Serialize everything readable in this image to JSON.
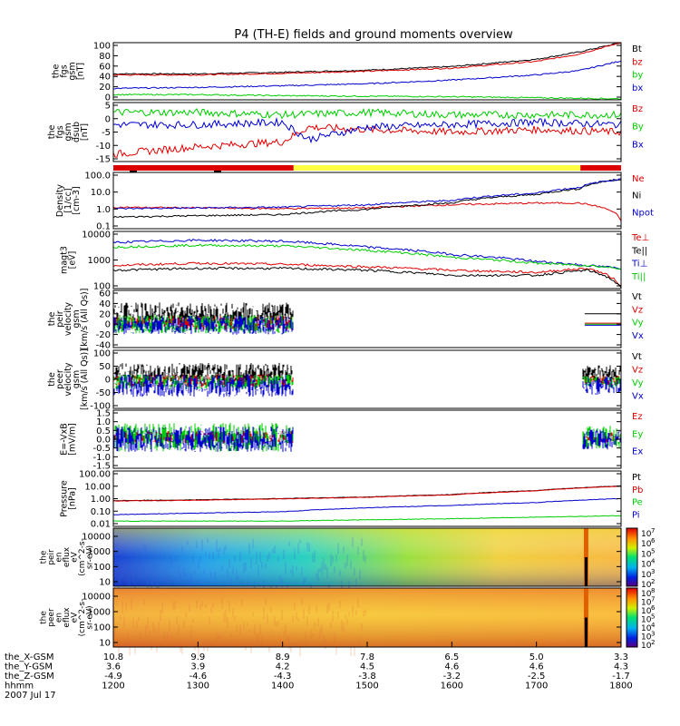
{
  "title": "P4 (TH-E) fields and ground moments overview",
  "colors": {
    "black": "#000000",
    "red": "#dd0000",
    "green": "#00cc00",
    "blue": "#0000cc",
    "yellow": "#ffff44"
  },
  "panels": [
    {
      "ylabel": [
        "the",
        "fgs",
        "gsm",
        "[nT]"
      ],
      "ticks": [
        "100",
        "80",
        "60",
        "40",
        "20",
        "0"
      ],
      "legend": [
        {
          "label": "Bt",
          "color": "#000000"
        },
        {
          "label": "bz",
          "color": "#dd0000"
        },
        {
          "label": "by",
          "color": "#00cc00"
        },
        {
          "label": "bx",
          "color": "#0000cc"
        }
      ]
    },
    {
      "ylabel": [
        "the",
        "fgs",
        "gsm",
        "dsub",
        "[nT]"
      ],
      "ticks": [
        "5",
        "0",
        "-5",
        "-10",
        "-15"
      ],
      "legend": [
        {
          "label": "Bz",
          "color": "#dd0000"
        },
        {
          "label": "By",
          "color": "#00cc00"
        },
        {
          "label": "Bx",
          "color": "#0000cc"
        }
      ]
    },
    {
      "ylabel": [
        "Density",
        "[1/cc]",
        "[cm-3]"
      ],
      "ticks": [
        "100.0",
        "10.0",
        "1.0",
        "0.1"
      ],
      "legend": [
        {
          "label": "Ne",
          "color": "#dd0000"
        },
        {
          "label": "Ni",
          "color": "#000000"
        },
        {
          "label": "Npot",
          "color": "#0000cc"
        }
      ]
    },
    {
      "ylabel": [
        "magt3",
        "[eV]"
      ],
      "ticks": [
        "10000",
        "1000",
        "100"
      ],
      "legend": [
        {
          "label": "Te⊥",
          "color": "#dd0000"
        },
        {
          "label": "Te||",
          "color": "#000000"
        },
        {
          "label": "Ti⊥",
          "color": "#0000cc"
        },
        {
          "label": "Ti||",
          "color": "#00cc00"
        }
      ]
    },
    {
      "ylabel": [
        "the",
        "peir",
        "velocity",
        "gsm",
        "[km/s (All Qs)]"
      ],
      "ticks": [
        "60",
        "40",
        "20",
        "0",
        "-20",
        "-40"
      ],
      "legend": [
        {
          "label": "Vt",
          "color": "#000000"
        },
        {
          "label": "Vz",
          "color": "#dd0000"
        },
        {
          "label": "Vy",
          "color": "#00cc00"
        },
        {
          "label": "Vx",
          "color": "#0000cc"
        }
      ]
    },
    {
      "ylabel": [
        "the",
        "peer",
        "velocity",
        "gsm",
        "[km/s (All Qs)]"
      ],
      "ticks": [
        "100",
        "50",
        "0",
        "-50",
        "-100"
      ],
      "legend": [
        {
          "label": "Vt",
          "color": "#000000"
        },
        {
          "label": "Vz",
          "color": "#dd0000"
        },
        {
          "label": "Vy",
          "color": "#00cc00"
        },
        {
          "label": "Vx",
          "color": "#0000cc"
        }
      ]
    },
    {
      "ylabel": [
        "E=-VxB",
        "[mV/m]"
      ],
      "ticks": [
        "1.5",
        "1.0",
        "0.5",
        "0.0",
        "-0.5",
        "-1.0",
        "-1.5"
      ],
      "legend": [
        {
          "label": "Ez",
          "color": "#dd0000"
        },
        {
          "label": "Ey",
          "color": "#00cc00"
        },
        {
          "label": "Ex",
          "color": "#0000cc"
        }
      ]
    },
    {
      "ylabel": [
        "Pressure",
        "[nPa]"
      ],
      "ticks": [
        "100.00",
        "10.00",
        "1.00",
        "0.10",
        "0.01"
      ],
      "legend": [
        {
          "label": "Pt",
          "color": "#000000"
        },
        {
          "label": "Pb",
          "color": "#dd0000"
        },
        {
          "label": "Pe",
          "color": "#00cc00"
        },
        {
          "label": "Pi",
          "color": "#0000cc"
        }
      ]
    },
    {
      "ylabel": [
        "the",
        "peir",
        "en",
        "eflux",
        "eV",
        "(cm^2-s-",
        "sr-eV)"
      ],
      "ticks": [
        "10000",
        "1000",
        "100",
        "10"
      ],
      "colorbar": [
        "10",
        "10",
        "10",
        "10",
        "10",
        "10"
      ],
      "colorbar_exp": [
        "7",
        "6",
        "5",
        "4",
        "3",
        "2"
      ]
    },
    {
      "ylabel": [
        "the",
        "peer",
        "en",
        "eflux",
        "eV",
        "(cm^2-s-",
        "sr-eV)"
      ],
      "ticks": [
        "10000",
        "1000",
        "100",
        "10"
      ],
      "colorbar": [
        "10",
        "10",
        "10",
        "10",
        "10",
        "10",
        "10"
      ],
      "colorbar_exp": [
        "8",
        "7",
        "6",
        "5",
        "4",
        "3",
        "2"
      ]
    }
  ],
  "xaxis": {
    "row_labels": [
      "the_X-GSM",
      "the_Y-GSM",
      "the_Z-GSM",
      "hhmm",
      "2007 Jul 17"
    ],
    "x_gsm": [
      "10.8",
      "9.9",
      "8.9",
      "7.8",
      "6.5",
      "5.0",
      "3.3"
    ],
    "y_gsm": [
      "3.6",
      "3.9",
      "4.2",
      "4.5",
      "4.6",
      "4.6",
      "4.3"
    ],
    "z_gsm": [
      "-4.9",
      "-4.6",
      "-4.3",
      "-3.8",
      "-3.2",
      "-2.5",
      "-1.7"
    ],
    "hhmm": [
      "1200",
      "1300",
      "1400",
      "1500",
      "1600",
      "1700",
      "1800"
    ]
  },
  "chart_data": {
    "type": "line",
    "title": "P4 (TH-E) fields and ground moments overview",
    "x": {
      "label": "hhmm",
      "range": [
        1200,
        1800
      ],
      "ticks": [
        1200,
        1300,
        1400,
        1500,
        1600,
        1700,
        1800
      ]
    },
    "mode_bar": [
      {
        "from": 1200,
        "to": 1413,
        "color": "#dd0000"
      },
      {
        "from": 1413,
        "to": 1752,
        "color": "#ffff44"
      },
      {
        "from": 1752,
        "to": 1800,
        "color": "#dd0000"
      }
    ],
    "series_panels": [
      {
        "name": "the_fgs_gsm",
        "scale": "linear",
        "ylim": [
          -10,
          100
        ],
        "series": [
          {
            "name": "Bt",
            "x": [
              1200,
              1300,
              1400,
              1500,
              1600,
              1700,
              1750,
              1800
            ],
            "values": [
              40,
              40,
              43,
              47,
              54,
              68,
              82,
              100
            ]
          },
          {
            "name": "bz",
            "x": [
              1200,
              1300,
              1400,
              1500,
              1600,
              1700,
              1750,
              1800
            ],
            "values": [
              38,
              38,
              41,
              45,
              51,
              64,
              78,
              100
            ]
          },
          {
            "name": "by",
            "x": [
              1200,
              1300,
              1400,
              1500,
              1600,
              1700,
              1750,
              1800
            ],
            "values": [
              12,
              14,
              17,
              21,
              28,
              38,
              46,
              65
            ]
          },
          {
            "name": "bx",
            "x": [
              1200,
              1300,
              1400,
              1500,
              1600,
              1700,
              1750,
              1800
            ],
            "values": [
              0,
              0,
              -2,
              -3,
              -4,
              -6,
              -7,
              -8
            ]
          }
        ]
      },
      {
        "name": "the_fgs_gsm_dsub",
        "scale": "linear",
        "ylim": [
          -17,
          7
        ],
        "series": [
          {
            "name": "Bz",
            "x": [
              1200,
              1300,
              1400,
              1430,
              1500,
              1600,
              1700,
              1800
            ],
            "values": [
              -14,
              -11,
              -9,
              -3,
              -4,
              -5,
              -4,
              -5
            ]
          },
          {
            "name": "By",
            "x": [
              1200,
              1300,
              1400,
              1500,
              1600,
              1700,
              1800
            ],
            "values": [
              3,
              3,
              2,
              3,
              2,
              2,
              2
            ]
          },
          {
            "name": "Bx",
            "x": [
              1200,
              1300,
              1400,
              1430,
              1500,
              1600,
              1700,
              1800
            ],
            "values": [
              -2,
              -2,
              -1,
              -8,
              -3,
              -2,
              -1,
              -2
            ]
          }
        ]
      },
      {
        "name": "Density",
        "scale": "log",
        "ylim": [
          0.03,
          300
        ],
        "series": [
          {
            "name": "Ne",
            "x": [
              1200,
              1300,
              1400,
              1500,
              1600,
              1700,
              1750,
              1800
            ],
            "values": [
              1.0,
              0.9,
              0.8,
              0.9,
              1.5,
              2.0,
              2.0,
              0.1
            ]
          },
          {
            "name": "Ni",
            "x": [
              1200,
              1300,
              1400,
              1500,
              1600,
              1700,
              1750,
              1800
            ],
            "values": [
              0.2,
              0.25,
              0.3,
              0.7,
              2.0,
              8.0,
              20,
              100
            ]
          },
          {
            "name": "Npot",
            "x": [
              1200,
              1300,
              1400,
              1500,
              1600,
              1700,
              1750,
              1800
            ],
            "values": [
              0.8,
              0.9,
              1.0,
              1.5,
              3.0,
              10,
              25,
              100
            ]
          }
        ]
      },
      {
        "name": "magt3",
        "scale": "log",
        "ylim": [
          40,
          12000
        ],
        "series": [
          {
            "name": "Te_perp",
            "x": [
              1200,
              1300,
              1400,
              1500,
              1600,
              1700,
              1760,
              1800
            ],
            "values": [
              400,
              500,
              450,
              350,
              250,
              200,
              300,
              50
            ]
          },
          {
            "name": "Te_par",
            "x": [
              1200,
              1300,
              1400,
              1500,
              1600,
              1700,
              1760,
              1800
            ],
            "values": [
              250,
              300,
              300,
              250,
              150,
              150,
              250,
              40
            ]
          },
          {
            "name": "Ti_perp",
            "x": [
              1200,
              1300,
              1400,
              1500,
              1600,
              1700,
              1760,
              1800
            ],
            "values": [
              4000,
              5000,
              4500,
              2500,
              1200,
              600,
              400,
              300
            ]
          },
          {
            "name": "Ti_par",
            "x": [
              1200,
              1300,
              1400,
              1500,
              1600,
              1700,
              1760,
              1800
            ],
            "values": [
              2500,
              3000,
              2800,
              1800,
              900,
              500,
              400,
              300
            ]
          }
        ]
      },
      {
        "name": "the_peir_velocity_gsm",
        "scale": "linear",
        "ylim": [
          -45,
          65
        ],
        "series": [
          {
            "name": "Vt",
            "x": [
              1200,
              1400
            ],
            "values": [
              20,
              20
            ]
          },
          {
            "name": "Vz",
            "x": [
              1200,
              1400
            ],
            "values": [
              2,
              2
            ]
          },
          {
            "name": "Vy",
            "x": [
              1200,
              1400
            ],
            "values": [
              0,
              0
            ]
          },
          {
            "name": "Vx",
            "x": [
              1200,
              1400
            ],
            "values": [
              -2,
              -2
            ]
          }
        ]
      },
      {
        "name": "the_peer_velocity_gsm",
        "scale": "linear",
        "ylim": [
          -110,
          120
        ],
        "series": [
          {
            "name": "Vt",
            "x": [
              1200,
              1400
            ],
            "values": [
              30,
              30
            ]
          },
          {
            "name": "Vz",
            "x": [
              1200,
              1400
            ],
            "values": [
              0,
              0
            ]
          },
          {
            "name": "Vy",
            "x": [
              1200,
              1400
            ],
            "values": [
              -5,
              -5
            ]
          },
          {
            "name": "Vx",
            "x": [
              1200,
              1400
            ],
            "values": [
              -20,
              -20
            ]
          }
        ]
      },
      {
        "name": "E=-VxB",
        "scale": "linear",
        "ylim": [
          -1.6,
          1.6
        ],
        "series": [
          {
            "name": "Ez",
            "x": [
              1200,
              1400
            ],
            "values": [
              0.1,
              0.1
            ]
          },
          {
            "name": "Ey",
            "x": [
              1200,
              1400
            ],
            "values": [
              0.1,
              0.1
            ]
          },
          {
            "name": "Ex",
            "x": [
              1200,
              1400
            ],
            "values": [
              0.0,
              0.0
            ]
          }
        ]
      },
      {
        "name": "Pressure",
        "scale": "log",
        "ylim": [
          0.008,
          120
        ],
        "series": [
          {
            "name": "Pt",
            "x": [
              1200,
              1300,
              1400,
              1500,
              1600,
              1700,
              1800
            ],
            "values": [
              0.7,
              0.8,
              1.0,
              1.3,
              2.0,
              4.0,
              9.0
            ]
          },
          {
            "name": "Pb",
            "x": [
              1200,
              1300,
              1400,
              1500,
              1600,
              1700,
              1800
            ],
            "values": [
              0.65,
              0.75,
              0.95,
              1.25,
              1.9,
              3.8,
              8.5
            ]
          },
          {
            "name": "Pe",
            "x": [
              1200,
              1300,
              1400,
              1500,
              1600,
              1700,
              1800
            ],
            "values": [
              0.02,
              0.02,
              0.02,
              0.025,
              0.03,
              0.04,
              0.05
            ]
          },
          {
            "name": "Pi",
            "x": [
              1200,
              1300,
              1400,
              1500,
              1600,
              1700,
              1800
            ],
            "values": [
              0.06,
              0.08,
              0.1,
              0.2,
              0.3,
              0.5,
              1.0
            ]
          }
        ]
      }
    ],
    "spectrograms": [
      {
        "name": "the_peir_en_eflux",
        "ylim": [
          5,
          30000
        ],
        "zlim": [
          100,
          10000000
        ]
      },
      {
        "name": "the_peer_en_eflux",
        "ylim": [
          5,
          30000
        ],
        "zlim": [
          100,
          100000000
        ]
      }
    ]
  }
}
